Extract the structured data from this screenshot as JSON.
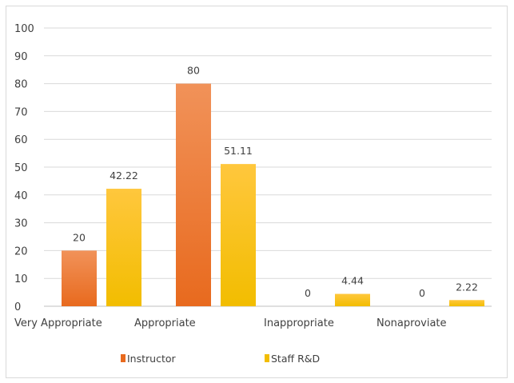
{
  "chart_data": {
    "type": "bar",
    "title": "",
    "xlabel": "",
    "ylabel": "",
    "categories": [
      "Very Appropriate",
      "Appropriate",
      "Inappropriate",
      "Nonaproviate"
    ],
    "series": [
      {
        "name": "Instructor",
        "values": [
          20,
          80,
          0,
          0
        ],
        "color": "#e86a1e",
        "color_light": "#f19259"
      },
      {
        "name": "Staff  R&D",
        "values": [
          42.22,
          51.11,
          4.44,
          2.22
        ],
        "color": "#f2bd00",
        "color_light": "#ffc73d"
      }
    ],
    "data_labels": [
      [
        "20",
        "80",
        "0",
        "0"
      ],
      [
        "42.22",
        "51.11",
        "4.44",
        "2.22"
      ]
    ],
    "ylim": [
      0,
      100
    ],
    "yticks": [
      0,
      10,
      20,
      30,
      40,
      50,
      60,
      70,
      80,
      90,
      100
    ],
    "grid": true,
    "legend": "bottom"
  }
}
